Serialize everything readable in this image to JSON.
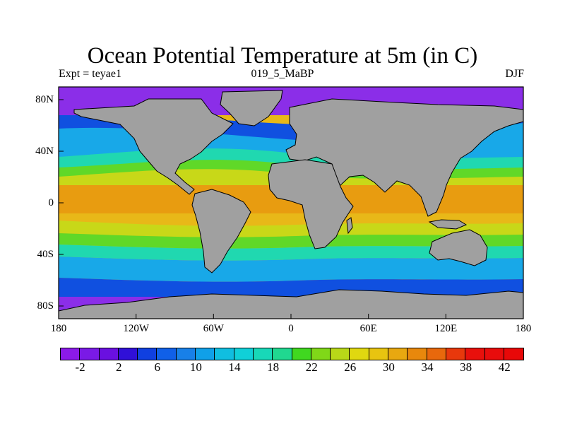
{
  "title": "Ocean Potential Temperature at 5m (in C)",
  "left_subtitle": "Expt = teyae1",
  "center_subtitle": "019_5_MaBP",
  "right_subtitle": "DJF",
  "lat_labels": [
    "80N",
    "40N",
    "0",
    "40S",
    "80S"
  ],
  "lon_labels": [
    "180",
    "120W",
    "60W",
    "0",
    "60E",
    "120E",
    "180"
  ],
  "colorbar": {
    "labels": [
      "-2",
      "2",
      "6",
      "10",
      "14",
      "18",
      "22",
      "26",
      "30",
      "34",
      "38",
      "42"
    ],
    "colors": [
      "#8B1AE8",
      "#7A1AE6",
      "#6A10E0",
      "#3010D8",
      "#1040E0",
      "#1060E8",
      "#1880E8",
      "#10A0E8",
      "#10BEE0",
      "#10D0D8",
      "#18D8B8",
      "#20D890",
      "#40D820",
      "#80D818",
      "#B8D818",
      "#E0D810",
      "#E8C410",
      "#E8A810",
      "#E8880C",
      "#E8680C",
      "#E8380C",
      "#E8100C",
      "#E80C0C",
      "#E80808"
    ]
  },
  "colors": {
    "land": "#A0A0A0",
    "polar": "#8B2EE8",
    "cold": "#1050E0",
    "cool": "#18A8E8",
    "mild": "#20D8B0",
    "temperate": "#60D828",
    "warm": "#C8D818",
    "tropical": "#E8B818",
    "hot": "#E89C10"
  }
}
